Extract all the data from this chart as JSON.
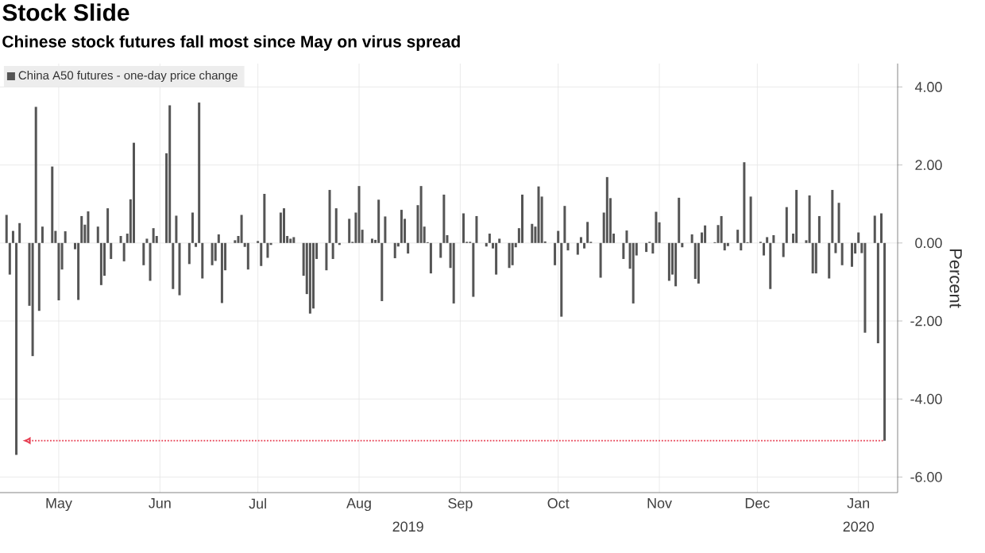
{
  "chart_data": {
    "type": "bar",
    "title": "Stock Slide",
    "subtitle": "Chinese stock futures fall most since May on virus spread",
    "ylabel": "Percent",
    "legend": "top left",
    "grid": true,
    "xlim": [
      "2019-04-27",
      "2020-01-27"
    ],
    "ylim": [
      -6.4,
      4.6
    ],
    "xticks": [
      {
        "value": "2019-05-15",
        "label": "May"
      },
      {
        "value": "2019-06-15",
        "label": "Jun"
      },
      {
        "value": "2019-07-15",
        "label": "Jul"
      },
      {
        "value": "2019-08-15",
        "label": "Aug"
      },
      {
        "value": "2019-09-15",
        "label": "Sep"
      },
      {
        "value": "2019-10-15",
        "label": "Oct"
      },
      {
        "value": "2019-11-15",
        "label": "Nov"
      },
      {
        "value": "2019-12-15",
        "label": "Dec"
      },
      {
        "value": "2020-01-15",
        "label": "Jan"
      }
    ],
    "yticks": [
      {
        "value": -6,
        "label": "-6.00"
      },
      {
        "value": -4,
        "label": "-4.00"
      },
      {
        "value": -2,
        "label": "-2.00"
      },
      {
        "value": 0,
        "label": "0.00"
      },
      {
        "value": 2,
        "label": "2.00"
      },
      {
        "value": 4,
        "label": "4.00"
      }
    ],
    "annotations": [
      "2019",
      "2020"
    ],
    "ref_lines": [
      {
        "axis": "y",
        "value": -5.07,
        "color": "#e63c50",
        "line_style": "dotted"
      }
    ],
    "x": [
      "2019-04-29",
      "2019-04-30",
      "2019-05-01",
      "2019-05-02",
      "2019-05-03",
      "2019-05-06",
      "2019-05-07",
      "2019-05-08",
      "2019-05-09",
      "2019-05-10",
      "2019-05-13",
      "2019-05-14",
      "2019-05-15",
      "2019-05-16",
      "2019-05-17",
      "2019-05-20",
      "2019-05-21",
      "2019-05-22",
      "2019-05-23",
      "2019-05-24",
      "2019-05-27",
      "2019-05-28",
      "2019-05-29",
      "2019-05-30",
      "2019-05-31",
      "2019-06-03",
      "2019-06-04",
      "2019-06-05",
      "2019-06-06",
      "2019-06-07",
      "2019-06-10",
      "2019-06-11",
      "2019-06-12",
      "2019-06-13",
      "2019-06-14",
      "2019-06-17",
      "2019-06-18",
      "2019-06-19",
      "2019-06-20",
      "2019-06-21",
      "2019-06-24",
      "2019-06-25",
      "2019-06-26",
      "2019-06-27",
      "2019-06-28",
      "2019-07-01",
      "2019-07-02",
      "2019-07-03",
      "2019-07-04",
      "2019-07-05",
      "2019-07-08",
      "2019-07-09",
      "2019-07-10",
      "2019-07-11",
      "2019-07-12",
      "2019-07-15",
      "2019-07-16",
      "2019-07-17",
      "2019-07-18",
      "2019-07-19",
      "2019-07-22",
      "2019-07-23",
      "2019-07-24",
      "2019-07-25",
      "2019-07-26",
      "2019-07-29",
      "2019-07-30",
      "2019-07-31",
      "2019-08-01",
      "2019-08-02",
      "2019-08-05",
      "2019-08-06",
      "2019-08-07",
      "2019-08-08",
      "2019-08-09",
      "2019-08-12",
      "2019-08-13",
      "2019-08-14",
      "2019-08-15",
      "2019-08-16",
      "2019-08-19",
      "2019-08-20",
      "2019-08-21",
      "2019-08-22",
      "2019-08-23",
      "2019-08-26",
      "2019-08-27",
      "2019-08-28",
      "2019-08-29",
      "2019-08-30",
      "2019-09-02",
      "2019-09-03",
      "2019-09-04",
      "2019-09-05",
      "2019-09-06",
      "2019-09-09",
      "2019-09-10",
      "2019-09-11",
      "2019-09-12",
      "2019-09-13",
      "2019-09-16",
      "2019-09-17",
      "2019-09-18",
      "2019-09-19",
      "2019-09-20",
      "2019-09-23",
      "2019-09-24",
      "2019-09-25",
      "2019-09-26",
      "2019-09-27",
      "2019-09-30",
      "2019-10-01",
      "2019-10-02",
      "2019-10-03",
      "2019-10-04",
      "2019-10-07",
      "2019-10-08",
      "2019-10-09",
      "2019-10-10",
      "2019-10-11",
      "2019-10-14",
      "2019-10-15",
      "2019-10-16",
      "2019-10-17",
      "2019-10-18",
      "2019-10-21",
      "2019-10-22",
      "2019-10-23",
      "2019-10-24",
      "2019-10-25",
      "2019-10-28",
      "2019-10-29",
      "2019-10-30",
      "2019-10-31",
      "2019-11-01",
      "2019-11-04",
      "2019-11-05",
      "2019-11-06",
      "2019-11-07",
      "2019-11-08",
      "2019-11-11",
      "2019-11-12",
      "2019-11-13",
      "2019-11-14",
      "2019-11-15",
      "2019-11-18",
      "2019-11-19",
      "2019-11-20",
      "2019-11-21",
      "2019-11-22",
      "2019-11-25",
      "2019-11-26",
      "2019-11-27",
      "2019-11-28",
      "2019-11-29",
      "2019-12-02",
      "2019-12-03",
      "2019-12-04",
      "2019-12-05",
      "2019-12-06",
      "2019-12-09",
      "2019-12-10",
      "2019-12-11",
      "2019-12-12",
      "2019-12-13",
      "2019-12-16",
      "2019-12-17",
      "2019-12-18",
      "2019-12-19",
      "2019-12-20",
      "2019-12-23",
      "2019-12-24",
      "2019-12-26",
      "2019-12-27",
      "2019-12-30",
      "2019-12-31",
      "2020-01-01",
      "2020-01-02",
      "2020-01-03",
      "2020-01-06",
      "2020-01-07",
      "2020-01-08",
      "2020-01-09",
      "2020-01-10",
      "2020-01-13",
      "2020-01-14",
      "2020-01-15",
      "2020-01-16",
      "2020-01-17",
      "2020-01-20",
      "2020-01-21",
      "2020-01-22",
      "2020-01-23"
    ],
    "series": [
      {
        "name": "China A50 futures - one-day price change",
        "color": "#555555",
        "values": [
          0.72,
          -0.81,
          0.31,
          -5.43,
          0.51,
          -1.61,
          -2.9,
          3.49,
          -1.74,
          0.42,
          1.96,
          0.31,
          -1.47,
          -0.68,
          0.3,
          -0.16,
          -1.46,
          0.69,
          0.47,
          0.81,
          0.42,
          -1.08,
          -0.84,
          0.89,
          -0.41,
          0.18,
          -0.47,
          0.24,
          1.12,
          2.57,
          -0.57,
          0.11,
          -0.97,
          0.38,
          0.18,
          2.3,
          3.53,
          -1.18,
          0.7,
          -1.34,
          -0.54,
          0.78,
          -0.1,
          3.6,
          -0.91,
          -0.57,
          -0.46,
          0.22,
          -1.54,
          -0.7,
          0.07,
          0.18,
          0.72,
          -0.1,
          -0.68,
          0.05,
          -0.59,
          1.26,
          -0.38,
          -0.05,
          0.78,
          0.89,
          0.18,
          0.11,
          0.15,
          -0.84,
          -1.31,
          -1.81,
          -1.68,
          -0.41,
          -0.7,
          1.36,
          -0.41,
          0.89,
          -0.05,
          0.62,
          0.03,
          0.78,
          1.46,
          0.34,
          0.11,
          0.08,
          1.11,
          -1.49,
          0.68,
          -0.39,
          -0.09,
          0.85,
          0.62,
          -0.27,
          0.97,
          1.46,
          0.42,
          0.02,
          -0.78,
          -0.38,
          1.24,
          0.2,
          -0.64,
          -1.55,
          0.76,
          0.03,
          0.03,
          -1.38,
          0.69,
          -0.09,
          0.24,
          -0.14,
          -0.81,
          0.11,
          -0.64,
          -0.57,
          -0.11,
          0.38,
          1.24,
          0.49,
          0.42,
          1.45,
          1.19,
          0.04,
          -0.57,
          0.31,
          -1.89,
          0.95,
          -0.19,
          -0.3,
          0.15,
          -0.14,
          0.54,
          0.03,
          -0.89,
          0.78,
          1.69,
          1.15,
          0.24,
          -0.41,
          0.32,
          -0.66,
          -1.55,
          -0.32,
          -0.23,
          0.03,
          -0.27,
          0.8,
          0.53,
          -0.97,
          -0.81,
          -1.11,
          1.16,
          -0.11,
          0.22,
          -0.92,
          -1.04,
          0.27,
          0.45,
          0.02,
          0.46,
          0.69,
          -0.19,
          -0.08,
          0.34,
          -0.19,
          2.07,
          0.02,
          1.19,
          0.03,
          -0.32,
          0.15,
          -1.18,
          0.2,
          -0.36,
          0.92,
          0.24,
          1.36,
          0.07,
          1.22,
          -0.78,
          -0.78,
          0.69,
          -0.91,
          1.36,
          -0.26,
          1.03,
          -0.57,
          -0.61,
          -0.27,
          0.27,
          -0.26,
          -2.3,
          0.7,
          -2.57,
          0.76,
          -5.07
        ]
      }
    ]
  }
}
